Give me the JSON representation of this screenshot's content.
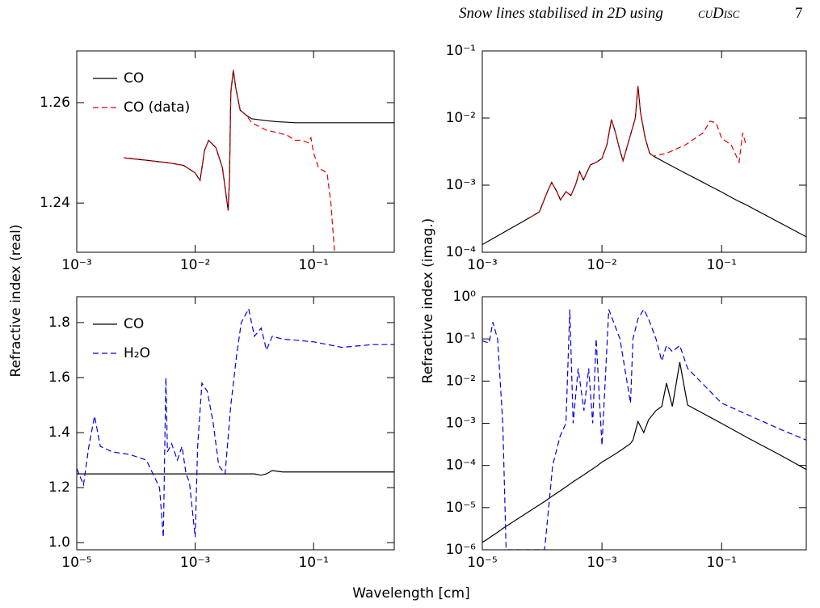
{
  "header": {
    "running_title": "Snow lines stabilised in 2D using",
    "code_name": "cuDisc",
    "page_number": "7"
  },
  "figure": {
    "ylabel_left": "Refractive index (real)",
    "ylabel_right": "Refractive index (imag.)",
    "xlabel": "Wavelength [cm]"
  },
  "chart_data": [
    {
      "type": "line",
      "xscale": "log",
      "yscale": "linear",
      "legend": "upper left",
      "xlim": [
        0.001,
        0.48
      ],
      "ylim": [
        1.2302,
        1.2703
      ],
      "xticks": [
        {
          "value": 0.001,
          "label": "10⁻³"
        },
        {
          "value": 0.01,
          "label": "10⁻²"
        },
        {
          "value": 0.1,
          "label": "10⁻¹"
        }
      ],
      "yticks": [
        1.24,
        1.26
      ],
      "x": [
        0.0025,
        0.004,
        0.006,
        0.008,
        0.01,
        0.011,
        0.012,
        0.013,
        0.015,
        0.017,
        0.019,
        0.0195,
        0.02,
        0.021,
        0.022,
        0.024,
        0.027,
        0.03,
        0.04,
        0.05,
        0.06,
        0.07,
        0.08,
        0.09,
        0.095,
        0.1,
        0.11,
        0.13,
        0.14,
        0.15,
        0.2,
        0.48
      ],
      "series": [
        {
          "name": "CO",
          "color": "#000000",
          "dash": "solid",
          "values": [
            1.249,
            1.2485,
            1.248,
            1.2475,
            1.246,
            1.2445,
            1.2505,
            1.2525,
            1.251,
            1.247,
            1.2385,
            1.245,
            1.262,
            1.2665,
            1.263,
            1.2585,
            1.2575,
            1.2568,
            1.2564,
            1.2562,
            1.2561,
            1.256,
            1.256,
            1.256,
            1.256,
            1.256,
            1.256,
            1.256,
            1.256,
            1.256,
            1.256,
            1.256
          ]
        },
        {
          "name": "CO (data)",
          "color": "#e00000",
          "dash": "dashed",
          "values": [
            1.249,
            1.2485,
            1.248,
            1.2475,
            1.246,
            1.2445,
            1.2505,
            1.2525,
            1.251,
            1.247,
            1.2385,
            1.245,
            1.262,
            1.2665,
            1.263,
            1.2585,
            1.2575,
            1.256,
            1.2545,
            1.254,
            1.2535,
            1.2525,
            1.2525,
            1.252,
            1.253,
            1.25,
            1.247,
            1.246,
            1.24,
            1.2305,
            null,
            null
          ]
        }
      ]
    },
    {
      "type": "line",
      "xscale": "log",
      "yscale": "log",
      "legend": "none",
      "xlim": [
        0.001,
        0.51
      ],
      "ylim": [
        0.0001,
        0.1
      ],
      "xticks": [
        {
          "value": 0.001,
          "label": "10⁻³"
        },
        {
          "value": 0.01,
          "label": "10⁻²"
        },
        {
          "value": 0.1,
          "label": "10⁻¹"
        }
      ],
      "yticks": [
        {
          "value": 0.0001,
          "label": "10⁻⁴"
        },
        {
          "value": 0.001,
          "label": "10⁻³"
        },
        {
          "value": 0.01,
          "label": "10⁻²"
        },
        {
          "value": 0.1,
          "label": "10⁻¹"
        }
      ],
      "x": [
        0.001,
        0.0025,
        0.003,
        0.0035,
        0.0038,
        0.0042,
        0.0045,
        0.005,
        0.0055,
        0.006,
        0.0065,
        0.007,
        0.008,
        0.009,
        0.01,
        0.011,
        0.012,
        0.013,
        0.014,
        0.015,
        0.017,
        0.019,
        0.02,
        0.021,
        0.023,
        0.025,
        0.027,
        0.035,
        0.05,
        0.07,
        0.08,
        0.09,
        0.1,
        0.12,
        0.14,
        0.15,
        0.16,
        0.51
      ],
      "series": [
        {
          "name": "CO",
          "color": "#000000",
          "dash": "solid",
          "values": [
            0.00013,
            0.00033,
            0.0004,
            0.0008,
            0.0011,
            0.0008,
            0.0006,
            0.0008,
            0.0007,
            0.001,
            0.0016,
            0.0012,
            0.002,
            0.0022,
            0.0025,
            0.004,
            0.0095,
            0.006,
            0.0035,
            0.0023,
            0.005,
            0.01,
            0.03,
            0.012,
            0.005,
            0.003,
            0.0027,
            0.0021,
            0.0015,
            0.0011,
            0.00097,
            0.00087,
            0.00079,
            0.00066,
            0.00057,
            0.00054,
            0.00051,
            0.00017
          ]
        },
        {
          "name": "CO (data)",
          "color": "#e00000",
          "dash": "dashed",
          "values": [
            null,
            0.00033,
            0.0004,
            0.0008,
            0.0011,
            0.0008,
            0.0006,
            0.0008,
            0.0007,
            0.001,
            0.0016,
            0.0012,
            0.002,
            0.0022,
            0.0025,
            0.004,
            0.0095,
            0.006,
            0.0035,
            0.0023,
            0.005,
            0.01,
            0.03,
            0.012,
            0.005,
            0.003,
            0.0027,
            0.003,
            0.004,
            0.006,
            0.009,
            0.0085,
            0.005,
            0.004,
            0.0022,
            0.006,
            0.004,
            null
          ]
        }
      ]
    },
    {
      "type": "line",
      "xscale": "log",
      "yscale": "linear",
      "legend": "upper left",
      "xlim": [
        1e-05,
        2.3
      ],
      "ylim": [
        0.974,
        1.894
      ],
      "xticks": [
        {
          "value": 1e-05,
          "label": "10⁻⁵"
        },
        {
          "value": 0.001,
          "label": "10⁻³"
        },
        {
          "value": 0.1,
          "label": "10⁻¹"
        }
      ],
      "yticks": [
        {
          "value": 1.0,
          "label": "1.0"
        },
        1.2,
        1.4,
        1.6,
        1.8
      ],
      "x": [
        1e-05,
        1.3e-05,
        1.6e-05,
        2e-05,
        2.5e-05,
        4e-05,
        8e-05,
        0.00015,
        0.00025,
        0.00029,
        0.00032,
        0.00034,
        0.0004,
        0.0005,
        0.0006,
        0.0007,
        0.0008,
        0.001,
        0.0011,
        0.0013,
        0.0016,
        0.002,
        0.0025,
        0.0032,
        0.004,
        0.005,
        0.006,
        0.008,
        0.01,
        0.013,
        0.016,
        0.02,
        0.03,
        0.1,
        0.3,
        1,
        2.3
      ],
      "series": [
        {
          "name": "CO",
          "color": "#000000",
          "dash": "solid",
          "values": [
            1.25,
            1.25,
            1.25,
            1.25,
            1.25,
            1.25,
            1.25,
            1.25,
            1.25,
            1.25,
            1.25,
            1.25,
            1.25,
            1.25,
            1.25,
            1.25,
            1.25,
            1.25,
            1.25,
            1.25,
            1.25,
            1.25,
            1.25,
            1.25,
            1.25,
            1.25,
            1.25,
            1.25,
            1.25,
            1.245,
            1.25,
            1.262,
            1.257,
            1.257,
            1.257,
            1.257,
            1.257
          ]
        },
        {
          "name": "H₂O",
          "color": "#0000e0",
          "dash": "dashed",
          "values": [
            1.27,
            1.21,
            1.35,
            1.46,
            1.35,
            1.33,
            1.32,
            1.3,
            1.2,
            1.02,
            1.6,
            1.33,
            1.36,
            1.3,
            1.35,
            1.25,
            1.22,
            1.02,
            1.35,
            1.58,
            1.55,
            1.44,
            1.28,
            1.25,
            1.5,
            1.68,
            1.8,
            1.85,
            1.75,
            1.78,
            1.7,
            1.75,
            1.74,
            1.73,
            1.71,
            1.72,
            1.72
          ]
        }
      ]
    },
    {
      "type": "line",
      "xscale": "log",
      "yscale": "log",
      "legend": "none",
      "xlim": [
        1e-05,
        2.6
      ],
      "ylim": [
        1e-06,
        1
      ],
      "xticks": [
        {
          "value": 1e-05,
          "label": "10⁻⁵"
        },
        {
          "value": 0.001,
          "label": "10⁻³"
        },
        {
          "value": 0.1,
          "label": "10⁻¹"
        }
      ],
      "yticks": [
        {
          "value": 1e-06,
          "label": "10⁻⁶"
        },
        {
          "value": 1e-05,
          "label": "10⁻⁵"
        },
        {
          "value": 0.0001,
          "label": "10⁻⁴"
        },
        {
          "value": 0.001,
          "label": "10⁻³"
        },
        {
          "value": 0.01,
          "label": "10⁻²"
        },
        {
          "value": 0.1,
          "label": "10⁻¹"
        },
        {
          "value": 1,
          "label": "10⁰"
        }
      ],
      "x": [
        1e-05,
        1.3e-05,
        1.5e-05,
        1.8e-05,
        2.2e-05,
        2.5e-05,
        0.00011,
        0.00015,
        0.0002,
        0.00025,
        0.00029,
        0.00033,
        0.0004,
        0.0005,
        0.0006,
        0.0007,
        0.0008,
        0.001,
        0.0013,
        0.002,
        0.003,
        0.0033,
        0.004,
        0.005,
        0.006,
        0.008,
        0.01,
        0.012,
        0.015,
        0.02,
        0.027,
        0.1,
        0.3,
        1,
        2.6
      ],
      "series": [
        {
          "name": "CO",
          "color": "#000000",
          "dash": "solid",
          "values": [
            1.5e-06,
            1.9e-06,
            2.2e-06,
            2.6e-06,
            3.2e-06,
            3.6e-06,
            1.4e-05,
            1.9e-05,
            2.5e-05,
            3.1e-05,
            3.6e-05,
            4.1e-05,
            4.9e-05,
            6e-05,
            7.2e-05,
            8.3e-05,
            9.4e-05,
            0.00012,
            0.00015,
            0.00022,
            0.00033,
            0.0004,
            0.0011,
            0.0006,
            0.0012,
            0.002,
            0.0025,
            0.009,
            0.0025,
            0.028,
            0.0027,
            0.00099,
            0.00042,
            0.00017,
            8e-05
          ]
        },
        {
          "name": "H₂O",
          "color": "#0000e0",
          "dash": "dashed",
          "values": [
            0.09,
            0.08,
            0.25,
            0.1,
            0.001,
            1e-06,
            1e-06,
            0.0001,
            0.0005,
            0.001,
            0.5,
            0.001,
            0.02,
            0.002,
            0.02,
            0.001,
            0.1,
            0.0003,
            0.5,
            0.1,
            0.003,
            0.1,
            0.3,
            0.5,
            0.3,
            0.1,
            0.03,
            0.07,
            0.05,
            0.07,
            0.02,
            0.003,
            0.0015,
            0.0007,
            0.0004
          ]
        }
      ]
    }
  ]
}
